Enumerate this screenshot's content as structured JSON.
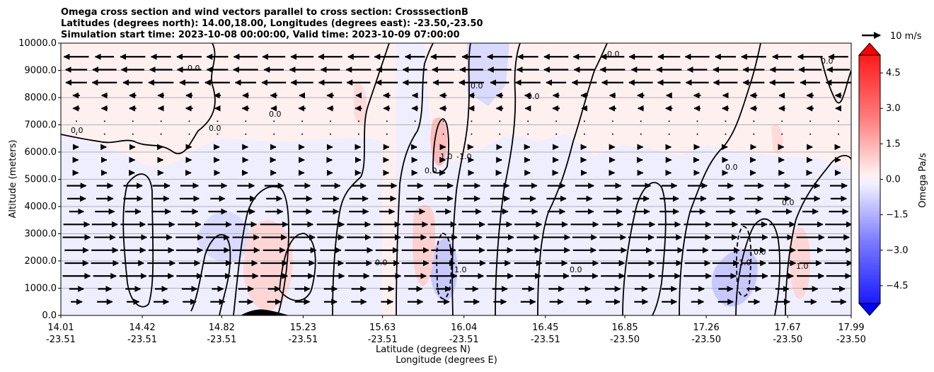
{
  "chart_data": {
    "type": "contour",
    "title_lines": [
      "Omega cross section and wind vectors parallel to cross section: CrosssectionB",
      "Latitudes (degrees north): 14.00,18.00, Longitudes (degrees east): -23.50,-23.50",
      "Simulation start time: 2023-10-08 00:00:00, Valid time: 2023-10-09 07:00:00"
    ],
    "xlabel_1": "Latitude (degrees N)",
    "xlabel_2": "Longitude (degrees E)",
    "ylabel": "Altitude (meters)",
    "xlim": [
      14.01,
      17.99
    ],
    "ylim": [
      0,
      10000
    ],
    "x_ticks": [
      {
        "lat": "14.01",
        "lon": "-23.51"
      },
      {
        "lat": "14.42",
        "lon": "-23.51"
      },
      {
        "lat": "14.82",
        "lon": "-23.51"
      },
      {
        "lat": "15.23",
        "lon": "-23.51"
      },
      {
        "lat": "15.63",
        "lon": "-23.51"
      },
      {
        "lat": "16.04",
        "lon": "-23.51"
      },
      {
        "lat": "16.45",
        "lon": "-23.51"
      },
      {
        "lat": "16.85",
        "lon": "-23.50"
      },
      {
        "lat": "17.26",
        "lon": "-23.50"
      },
      {
        "lat": "17.67",
        "lon": "-23.50"
      },
      {
        "lat": "17.99",
        "lon": "-23.50"
      }
    ],
    "y_ticks": [
      "0.0",
      "1000.0",
      "2000.0",
      "3000.0",
      "4000.0",
      "5000.0",
      "6000.0",
      "7000.0",
      "8000.0",
      "9000.0",
      "10000.0"
    ],
    "y_grid": true,
    "colorbar": {
      "label": "Omega Pa/s",
      "ticks": [
        "4.5",
        "3.0",
        "1.5",
        "0.0",
        "−1.5",
        "−3.0",
        "−4.5"
      ],
      "range": [
        -5.25,
        5.25
      ],
      "extend": "both",
      "cmap": "bwr"
    },
    "contour_labels": [
      "0.0",
      "1.0",
      "-1.0"
    ],
    "quiver_key": {
      "label": "10 m/s",
      "speed_ms": 10
    },
    "wind_vectors_summary": "Easterly flow aloft (arrows pointing left above ~8000 m), westerly flow below ~5000 m (arrows pointing right, strongest 1000-3500 m)"
  }
}
